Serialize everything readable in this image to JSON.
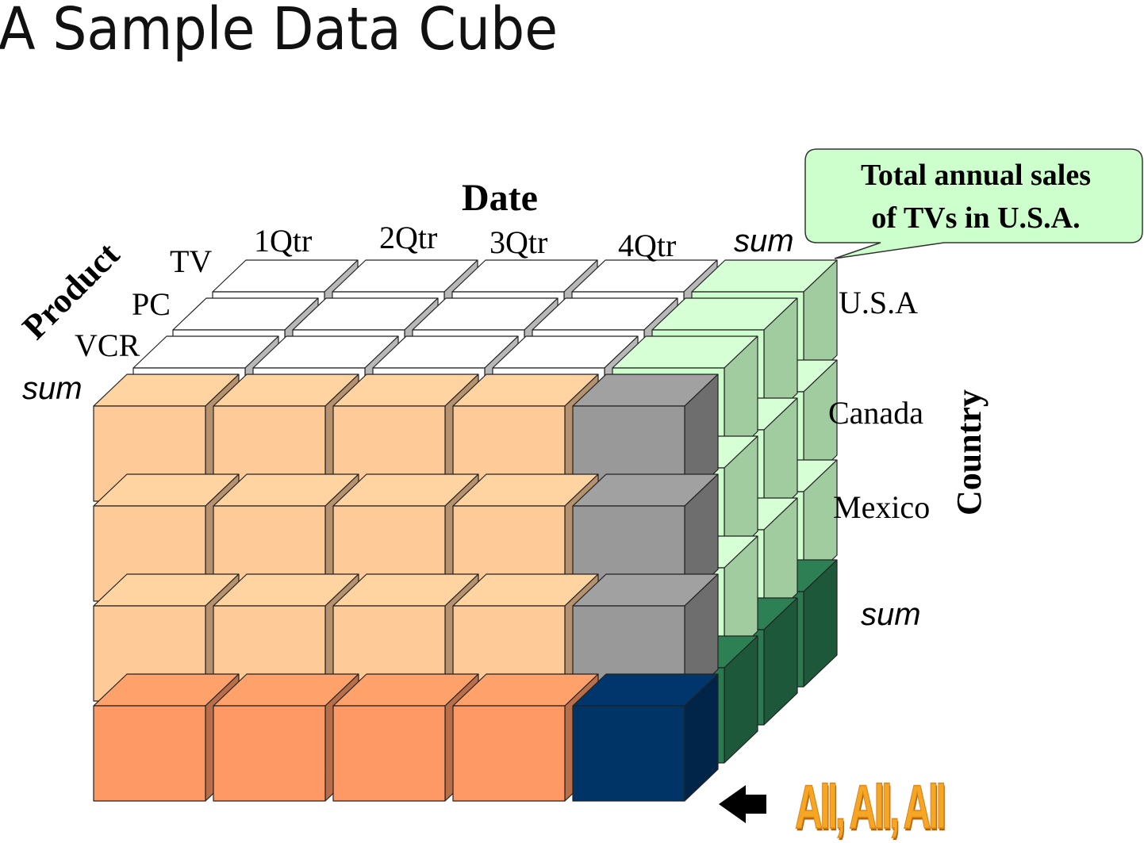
{
  "title": "A Sample Data Cube",
  "axes": {
    "date": "Date",
    "product": "Product",
    "country": "Country"
  },
  "date_labels": [
    "1Qtr",
    "2Qtr",
    "3Qtr",
    "4Qtr",
    "sum"
  ],
  "product_labels": [
    "TV",
    "PC",
    "VCR",
    "sum"
  ],
  "country_labels": [
    "U.S.A",
    "Canada",
    "Mexico",
    "sum"
  ],
  "callout": {
    "line1": "Total annual sales",
    "line2": "of  TVs in U.S.A."
  },
  "all_label": "All, All, All",
  "colors": {
    "peach": "#fdca98",
    "orange": "#fe9966",
    "gray": "#999999",
    "navy": "#003366",
    "light_green": "#ccffcc",
    "mid_green": "#a0ccA0",
    "dark_green": "#2a7a50",
    "white_top": "#ffffff"
  }
}
